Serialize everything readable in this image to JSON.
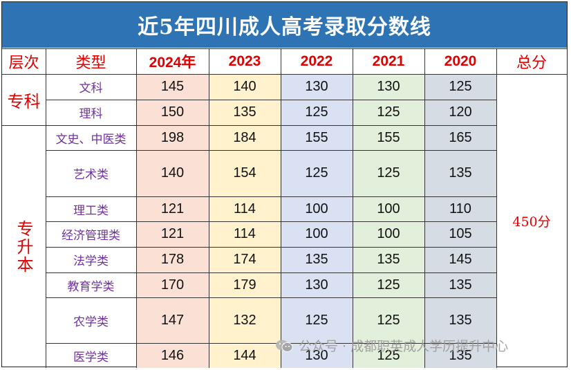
{
  "title": "近5年四川成人高考录取分数线",
  "headers": [
    "层次",
    "类型",
    "2024年",
    "2023",
    "2022",
    "2021",
    "2020",
    "总分"
  ],
  "levels": {
    "zhuanke": "专科",
    "zhuanshengben": "专升本"
  },
  "total_score": "450分",
  "rows": [
    {
      "type": "文科",
      "values": [
        "145",
        "140",
        "130",
        "130",
        "125"
      ]
    },
    {
      "type": "理科",
      "values": [
        "150",
        "135",
        "125",
        "125",
        "120"
      ]
    },
    {
      "type": "文史、中医类",
      "values": [
        "198",
        "184",
        "155",
        "155",
        "165"
      ]
    },
    {
      "type": "艺术类",
      "values": [
        "140",
        "154",
        "125",
        "125",
        "135"
      ]
    },
    {
      "type": "理工类",
      "values": [
        "121",
        "114",
        "100",
        "100",
        "110"
      ]
    },
    {
      "type": "经济管理类",
      "values": [
        "121",
        "114",
        "100",
        "100",
        "105"
      ]
    },
    {
      "type": "法学类",
      "values": [
        "178",
        "174",
        "135",
        "135",
        "145"
      ]
    },
    {
      "type": "教育学类",
      "values": [
        "170",
        "179",
        "130",
        "125",
        "135"
      ]
    },
    {
      "type": "农学类",
      "values": [
        "147",
        "132",
        "125",
        "125",
        "135"
      ]
    },
    {
      "type": "医学类",
      "values": [
        "146",
        "144",
        "130",
        "125",
        "135"
      ]
    }
  ],
  "column_colors": [
    "#fbe1d5",
    "#fff2cc",
    "#d9e1f2",
    "#e2efda",
    "#d6dce4"
  ],
  "watermark": "公众号 · 成都职英成人学历提升中心",
  "watermark_icon": "wechat-icon"
}
